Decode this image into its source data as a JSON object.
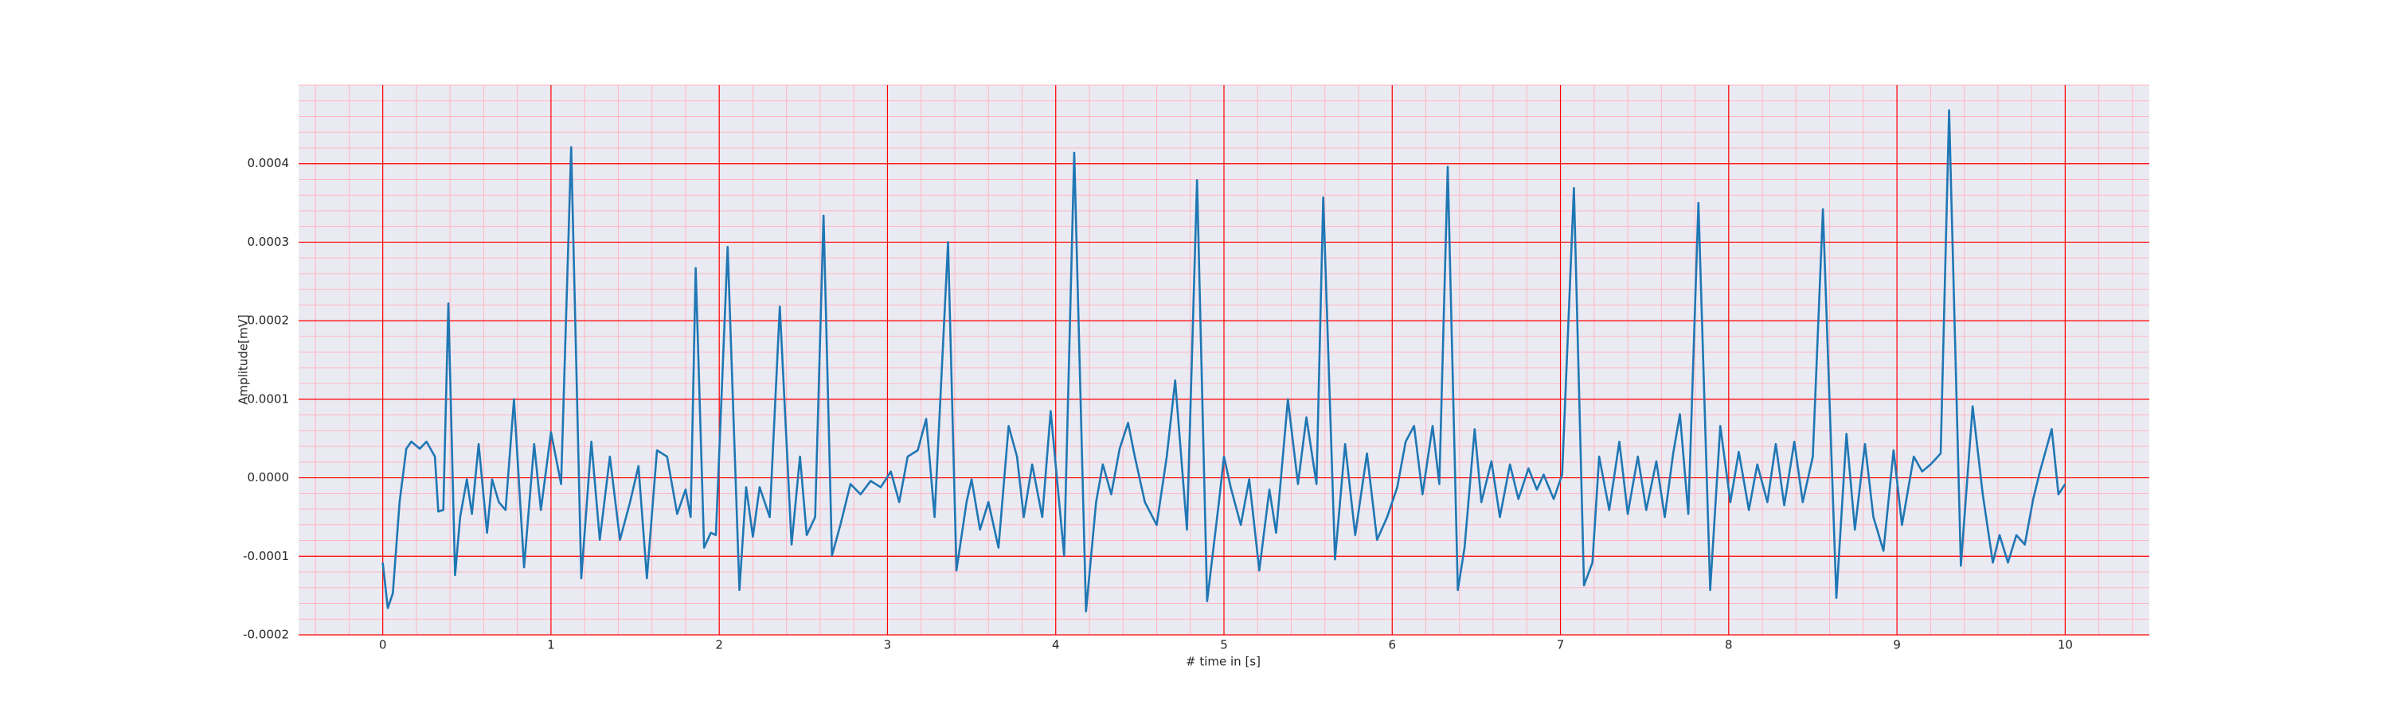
{
  "chart_data": {
    "type": "line",
    "xlabel": "# time in [s]",
    "ylabel": "Amplitude[mV]",
    "color": "#1f77b4",
    "grid": true,
    "grid_color": "#ff0000",
    "minor_grid_color": "#ffb6c1",
    "background": "#eaeaf2",
    "xlim": [
      -0.5,
      10.5
    ],
    "ylim": [
      -0.0002,
      0.0005
    ],
    "xticks": [
      0,
      1,
      2,
      3,
      4,
      5,
      6,
      7,
      8,
      9,
      10
    ],
    "yticks": [
      -0.0002,
      -0.0001,
      {
        "value": 0,
        "label": "0.0000"
      },
      0.0001,
      0.0002,
      0.0003,
      0.0004
    ],
    "xminorticks": [
      -0.4,
      -0.2,
      0,
      0.2,
      0.4,
      0.6,
      0.8,
      1,
      1.2,
      1.4,
      1.6,
      1.8,
      2,
      2.2,
      2.4,
      2.6,
      2.8,
      3,
      3.2,
      3.4,
      3.6,
      3.8,
      4,
      4.2,
      4.4,
      4.6,
      4.8,
      5,
      5.2,
      5.4,
      5.6,
      5.8,
      6,
      6.2,
      6.4,
      6.6,
      6.8,
      7,
      7.2,
      7.4,
      7.6,
      7.8,
      8,
      8.2,
      8.4,
      8.6,
      8.8,
      9,
      9.2,
      9.4,
      9.6,
      9.8,
      10,
      10.2,
      10.4
    ],
    "yminorticks": [
      -0.0002,
      -0.00018,
      -0.00016,
      -0.00014,
      -0.00012,
      -0.0001,
      -8e-05,
      -6e-05,
      -4e-05,
      -2e-05,
      0,
      2e-05,
      4e-05,
      6e-05,
      8e-05,
      0.0001,
      0.00012,
      0.00014,
      0.00016,
      0.00018,
      0.0002,
      0.00022,
      0.00024,
      0.00026,
      0.00028,
      0.0003,
      0.00032,
      0.00034,
      0.00036,
      0.00038,
      0.0004,
      0.00042,
      0.00044,
      0.00046,
      0.00048,
      0.0005
    ],
    "x": [
      0,
      0.03,
      0.06,
      0.1,
      0.14,
      0.17,
      0.22,
      0.26,
      0.31,
      0.33,
      0.36,
      0.39,
      0.43,
      0.46,
      0.5,
      0.53,
      0.57,
      0.62,
      0.65,
      0.69,
      0.73,
      0.78,
      0.84,
      0.9,
      0.94,
      1.0,
      1.06,
      1.12,
      1.18,
      1.24,
      1.29,
      1.35,
      1.41,
      1.47,
      1.52,
      1.57,
      1.63,
      1.69,
      1.75,
      1.8,
      1.83,
      1.86,
      1.91,
      1.95,
      1.98,
      2.05,
      2.12,
      2.16,
      2.2,
      2.24,
      2.3,
      2.36,
      2.43,
      2.48,
      2.52,
      2.57,
      2.62,
      2.67,
      2.72,
      2.78,
      2.84,
      2.9,
      2.96,
      3.02,
      3.07,
      3.12,
      3.18,
      3.23,
      3.28,
      3.36,
      3.41,
      3.47,
      3.5,
      3.55,
      3.6,
      3.66,
      3.72,
      3.77,
      3.81,
      3.86,
      3.92,
      3.97,
      4.05,
      4.11,
      4.18,
      4.24,
      4.28,
      4.33,
      4.38,
      4.43,
      4.47,
      4.53,
      4.6,
      4.66,
      4.71,
      4.78,
      4.84,
      4.9,
      4.97,
      5.0,
      5.04,
      5.1,
      5.15,
      5.21,
      5.27,
      5.31,
      5.38,
      5.44,
      5.49,
      5.55,
      5.59,
      5.66,
      5.72,
      5.78,
      5.85,
      5.91,
      5.97,
      6.03,
      6.08,
      6.13,
      6.18,
      6.24,
      6.28,
      6.33,
      6.39,
      6.43,
      6.49,
      6.53,
      6.59,
      6.64,
      6.7,
      6.75,
      6.81,
      6.86,
      6.9,
      6.96,
      7.01,
      7.08,
      7.14,
      7.19,
      7.23,
      7.29,
      7.35,
      7.4,
      7.46,
      7.51,
      7.57,
      7.62,
      7.67,
      7.71,
      7.76,
      7.82,
      7.89,
      7.95,
      8.01,
      8.06,
      8.12,
      8.17,
      8.23,
      8.28,
      8.33,
      8.39,
      8.44,
      8.5,
      8.56,
      8.64,
      8.7,
      8.75,
      8.81,
      8.86,
      8.92,
      8.98,
      9.03,
      9.1,
      9.15,
      9.2,
      9.26,
      9.31,
      9.38,
      9.45,
      9.51,
      9.57,
      9.61,
      9.66,
      9.71,
      9.76,
      9.81,
      9.85,
      9.92,
      9.96,
      10.0
    ],
    "values": [
      -0.000108,
      -0.000166,
      -0.000147,
      -3.1e-05,
      3.7e-05,
      4.6e-05,
      3.7e-05,
      4.6e-05,
      2.7e-05,
      -4.3e-05,
      -4.1e-05,
      0.000222,
      -0.000124,
      -5e-05,
      -2e-06,
      -4.6e-05,
      4.3e-05,
      -7e-05,
      -2e-06,
      -3.1e-05,
      -4.1e-05,
      0.0001,
      -0.000114,
      4.3e-05,
      -4.1e-05,
      5.8e-05,
      -8e-06,
      0.000421,
      -0.000128,
      4.6e-05,
      -7.9e-05,
      2.7e-05,
      -7.9e-05,
      -3.1e-05,
      1.5e-05,
      -0.000128,
      3.5e-05,
      2.7e-05,
      -4.6e-05,
      -1.5e-05,
      -5e-05,
      0.000267,
      -8.9e-05,
      -7e-05,
      -7.3e-05,
      0.000294,
      -0.000143,
      -1.2e-05,
      -7.5e-05,
      -1.2e-05,
      -5e-05,
      0.000218,
      -8.5e-05,
      2.7e-05,
      -7.3e-05,
      -5e-05,
      0.000334,
      -9.9e-05,
      -6e-05,
      -8e-06,
      -2.1e-05,
      -4e-06,
      -1.2e-05,
      8e-06,
      -3.1e-05,
      2.7e-05,
      3.5e-05,
      7.5e-05,
      -5e-05,
      0.0003,
      -0.000118,
      -3.1e-05,
      -2e-06,
      -6.6e-05,
      -3.1e-05,
      -8.9e-05,
      6.6e-05,
      2.7e-05,
      -5e-05,
      1.7e-05,
      -5e-05,
      8.5e-05,
      -9.9e-05,
      0.000414,
      -0.00017,
      -3.1e-05,
      1.7e-05,
      -2.1e-05,
      3.7e-05,
      7e-05,
      2.7e-05,
      -3.1e-05,
      -6e-05,
      2.7e-05,
      0.000124,
      -6.6e-05,
      0.000379,
      -0.000157,
      -3.1e-05,
      2.7e-05,
      -1.2e-05,
      -6e-05,
      -2e-06,
      -0.000118,
      -1.5e-05,
      -7e-05,
      0.0001,
      -8e-06,
      7.7e-05,
      -8e-06,
      0.000357,
      -0.000104,
      4.3e-05,
      -7.3e-05,
      3.1e-05,
      -7.9e-05,
      -5e-05,
      -1.2e-05,
      4.6e-05,
      6.6e-05,
      -2.1e-05,
      6.6e-05,
      -8e-06,
      0.000396,
      -0.000143,
      -8.9e-05,
      6.2e-05,
      -3.1e-05,
      2.1e-05,
      -5e-05,
      1.7e-05,
      -2.7e-05,
      1.2e-05,
      -1.5e-05,
      4e-06,
      -2.7e-05,
      4e-06,
      0.000369,
      -0.000137,
      -0.000108,
      2.7e-05,
      -4.1e-05,
      4.6e-05,
      -4.6e-05,
      2.7e-05,
      -4.1e-05,
      2.1e-05,
      -5e-05,
      3.1e-05,
      8.1e-05,
      -4.6e-05,
      0.00035,
      -0.000143,
      6.6e-05,
      -3.1e-05,
      3.3e-05,
      -4.1e-05,
      1.7e-05,
      -3.1e-05,
      4.3e-05,
      -3.5e-05,
      4.6e-05,
      -3.1e-05,
      2.7e-05,
      0.000342,
      -0.000153,
      5.6e-05,
      -6.6e-05,
      4.3e-05,
      -5e-05,
      -9.3e-05,
      3.5e-05,
      -6e-05,
      2.7e-05,
      8e-06,
      1.7e-05,
      3.1e-05,
      0.000468,
      -0.000112,
      9.1e-05,
      -2.1e-05,
      -0.000108,
      -7.3e-05,
      -0.000108,
      -7.3e-05,
      -8.5e-05,
      -2.7e-05,
      8e-06,
      6.2e-05,
      -2.1e-05,
      -8e-06
    ]
  }
}
